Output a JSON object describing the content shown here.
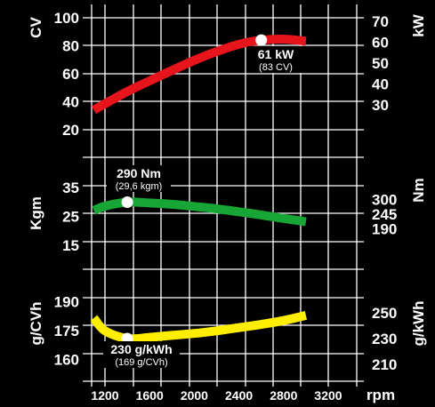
{
  "chart_data": {
    "type": "line",
    "x_unit": "rpm",
    "x_ticks": [
      1200,
      1600,
      2000,
      2400,
      2800,
      3200
    ],
    "panels": [
      {
        "id": "power",
        "left_label": "CV",
        "right_label": "kW",
        "left_ticks": [
          20,
          40,
          60,
          80,
          100
        ],
        "right_ticks": [
          30,
          40,
          50,
          60,
          70
        ],
        "series": {
          "color": "#e8141c",
          "x": [
            1100,
            1200,
            1400,
            1600,
            1800,
            2000,
            2200,
            2400,
            2600,
            2800,
            3000
          ],
          "y_kw": [
            27.5,
            30.5,
            36.4,
            41.5,
            46.5,
            51.3,
            55.5,
            59.0,
            61.0,
            61.5,
            60.5
          ]
        },
        "annotation": {
          "x": 2600,
          "y_kw": 61,
          "main": "61 kW",
          "sub": "(83 CV)"
        }
      },
      {
        "id": "torque",
        "left_label": "Kgm",
        "right_label": "Nm",
        "left_ticks": [
          15,
          25,
          35
        ],
        "right_ticks": [
          190,
          245,
          300
        ],
        "series": {
          "color": "#17a535",
          "x": [
            1100,
            1200,
            1400,
            1600,
            1800,
            2000,
            2200,
            2400,
            2600,
            2800,
            3000
          ],
          "y_nm": [
            259,
            275,
            290,
            287,
            282,
            274,
            265,
            254,
            242,
            229,
            217
          ]
        },
        "annotation": {
          "x": 1400,
          "y_nm": 290,
          "main": "290 Nm",
          "sub": "(29,6 kgm)"
        }
      },
      {
        "id": "consumption",
        "left_label": "g/CVh",
        "right_label": "g/kWh",
        "left_ticks": [
          160,
          175,
          190
        ],
        "right_ticks": [
          210,
          230,
          250
        ],
        "series": {
          "color": "#ffee00",
          "x": [
            1100,
            1200,
            1400,
            1600,
            1800,
            2000,
            2200,
            2400,
            2600,
            2800,
            3000
          ],
          "y_gkwh": [
            246,
            236,
            230,
            231,
            232.5,
            234,
            236,
            238.5,
            241,
            244,
            248
          ]
        },
        "annotation": {
          "x": 1400,
          "y_gkwh": 230,
          "main": "230 g/kWh",
          "sub": "(169 g/CVh)"
        }
      }
    ]
  }
}
